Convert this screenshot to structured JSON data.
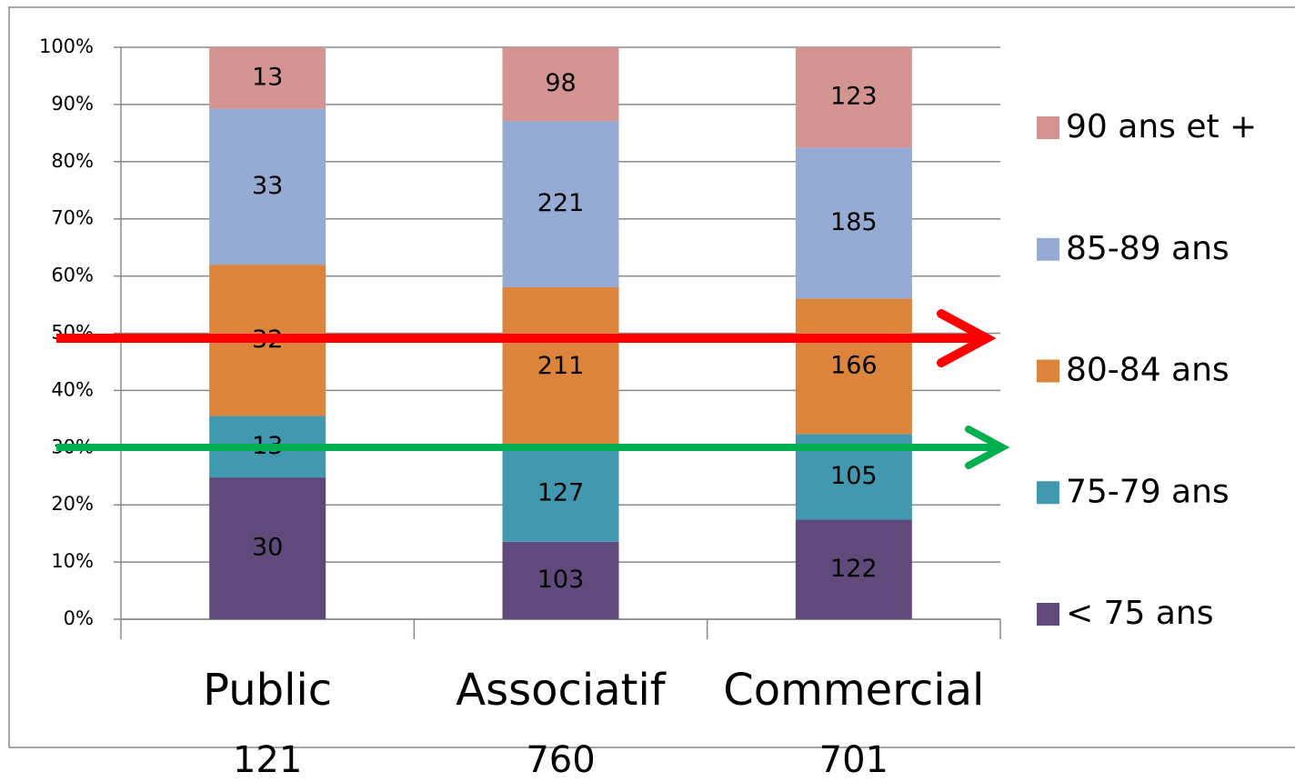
{
  "chart_data": {
    "type": "bar",
    "stacking": "percent",
    "categories": [
      "Public",
      "Associatif",
      "Commercial"
    ],
    "totals": [
      121,
      760,
      701
    ],
    "series": [
      {
        "name": "< 75 ans",
        "color": "#604a7b",
        "values": [
          30,
          103,
          122
        ]
      },
      {
        "name": "75-79 ans",
        "color": "#4198af",
        "values": [
          13,
          127,
          105
        ]
      },
      {
        "name": "80-84 ans",
        "color": "#dd843c",
        "values": [
          32,
          211,
          166
        ]
      },
      {
        "name": "85-89 ans",
        "color": "#95abd3",
        "values": [
          33,
          221,
          185
        ]
      },
      {
        "name": "90 ans et +",
        "color": "#d49592",
        "values": [
          13,
          98,
          123
        ]
      }
    ],
    "ylim": [
      0,
      100
    ],
    "yticks": [
      {
        "value": 0,
        "label": "0%"
      },
      {
        "value": 10,
        "label": "10%"
      },
      {
        "value": 20,
        "label": "20%"
      },
      {
        "value": 30,
        "label": "30%"
      },
      {
        "value": 40,
        "label": "40%"
      },
      {
        "value": 50,
        "label": "50%"
      },
      {
        "value": 60,
        "label": "60%"
      },
      {
        "value": 70,
        "label": "70%"
      },
      {
        "value": 80,
        "label": "80%"
      },
      {
        "value": 90,
        "label": "90%"
      },
      {
        "value": 100,
        "label": "100%"
      }
    ],
    "grid": true,
    "legend": "right"
  }
}
